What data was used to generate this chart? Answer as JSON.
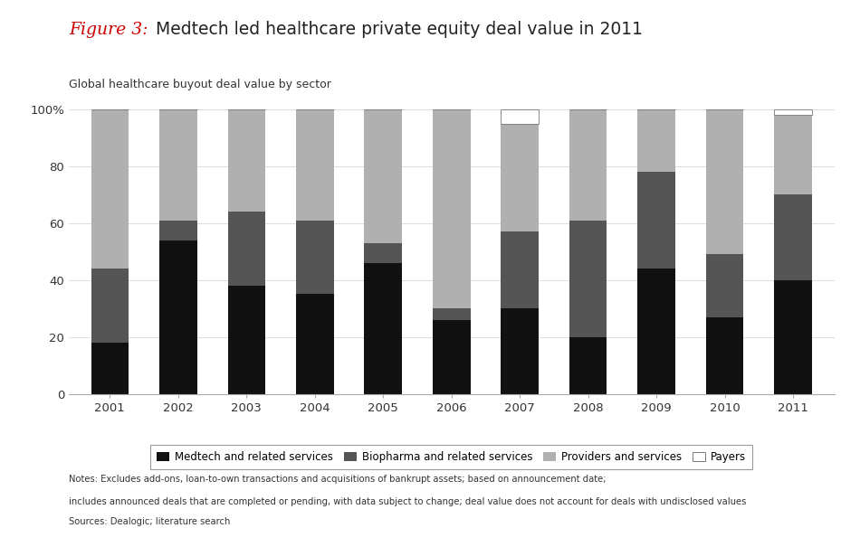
{
  "title_figure": "Figure 3:",
  "title_text": " Medtech led healthcare private equity deal value in 2011",
  "subtitle": "Global healthcare buyout deal value by sector",
  "years": [
    2001,
    2002,
    2003,
    2004,
    2005,
    2006,
    2007,
    2008,
    2009,
    2010,
    2011
  ],
  "medtech": [
    18,
    54,
    38,
    35,
    46,
    26,
    30,
    20,
    44,
    27,
    40
  ],
  "biopharma": [
    26,
    7,
    26,
    26,
    7,
    4,
    27,
    41,
    34,
    22,
    30
  ],
  "providers": [
    56,
    39,
    36,
    39,
    47,
    70,
    38,
    39,
    22,
    51,
    28
  ],
  "payers": [
    0,
    0,
    0,
    0,
    0,
    0,
    5,
    0,
    0,
    0,
    2
  ],
  "colors": {
    "medtech": "#111111",
    "biopharma": "#555555",
    "providers": "#b0b0b0",
    "payers": "#ffffff"
  },
  "legend_labels": [
    "Medtech and related services",
    "Biopharma and related services",
    "Providers and services",
    "Payers"
  ],
  "notes_line1": "Notes: Excludes add-ons, loan-to-own transactions and acquisitions of bankrupt assets; based on announcement date;",
  "notes_line2": "includes announced deals that are completed or pending, with data subject to change; deal value does not account for deals with undisclosed values",
  "notes_line3": "Sources: Dealogic; literature search",
  "ylim": [
    0,
    100
  ],
  "yticks": [
    0,
    20,
    40,
    60,
    80,
    100
  ],
  "ytick_labels": [
    "0",
    "20",
    "40",
    "60",
    "80",
    "100%"
  ],
  "background_color": "#ffffff",
  "bar_width": 0.55
}
